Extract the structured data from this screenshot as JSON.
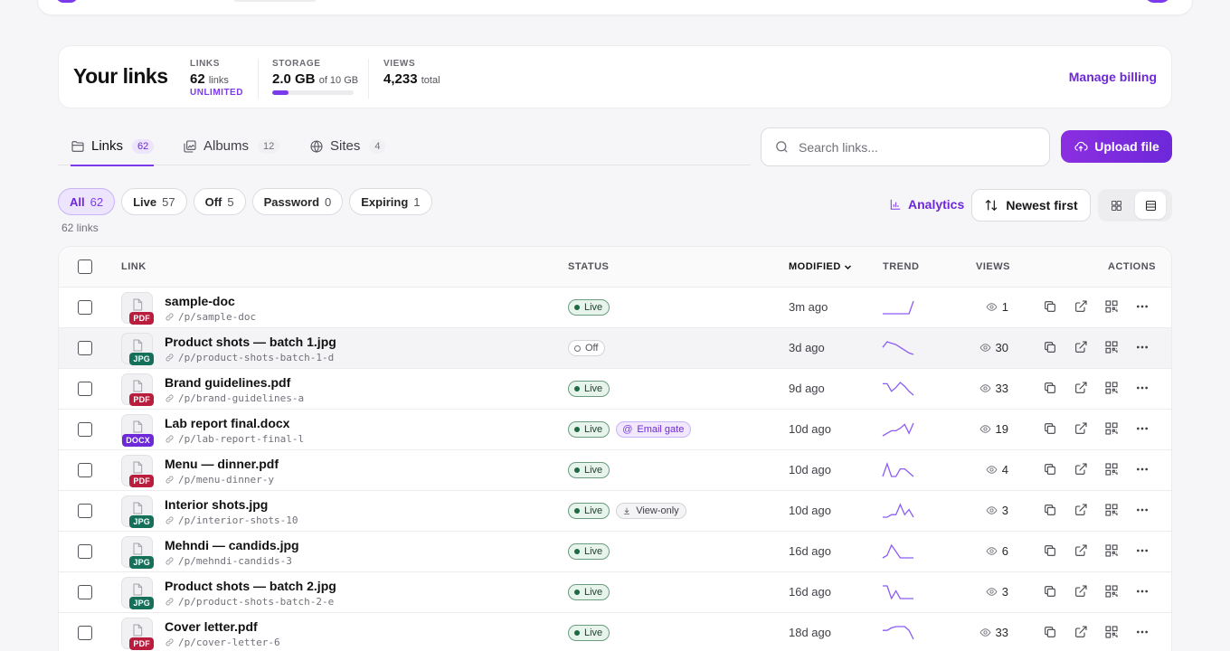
{
  "summary": {
    "title": "Your links",
    "links_label": "LINKS",
    "links_value": "62",
    "links_unit": "links",
    "links_sub": "UNLIMITED",
    "storage_label": "STORAGE",
    "storage_value": "2.0 GB",
    "storage_unit": "of 10 GB",
    "storage_fraction": 0.2,
    "views_label": "VIEWS",
    "views_value": "4,233",
    "views_unit": "total",
    "manage_billing": "Manage billing"
  },
  "tabs": [
    {
      "label": "Links",
      "count": "62",
      "icon": "folder-icon"
    },
    {
      "label": "Albums",
      "count": "12",
      "icon": "album-icon"
    },
    {
      "label": "Sites",
      "count": "4",
      "icon": "globe-icon"
    }
  ],
  "search": {
    "placeholder": "Search links..."
  },
  "upload_label": "Upload file",
  "filters": [
    {
      "label": "All",
      "count": "62"
    },
    {
      "label": "Live",
      "count": "57"
    },
    {
      "label": "Off",
      "count": "5"
    },
    {
      "label": "Password",
      "count": "0"
    },
    {
      "label": "Expiring",
      "count": "1"
    }
  ],
  "count_text": "62 links",
  "analytics_label": "Analytics",
  "sort_label": "Newest first",
  "table": {
    "headers": {
      "link": "LINK",
      "status": "STATUS",
      "modified": "MODIFIED",
      "trend": "TREND",
      "views": "VIEWS",
      "actions": "ACTIONS"
    },
    "rows": [
      {
        "name": "sample-doc",
        "slug": "/p/sample-doc",
        "type": "PDF",
        "type_color": "#b91c3c",
        "status": "Live",
        "extra": "",
        "modified": "3m ago",
        "views": "1",
        "trend": [
          0,
          0,
          0,
          0,
          0,
          0,
          0,
          10
        ]
      },
      {
        "name": "Product shots — batch 1.jpg",
        "slug": "/p/product-shots-batch-1-d",
        "type": "JPG",
        "type_color": "#15705a",
        "status": "Off",
        "extra": "",
        "modified": "3d ago",
        "views": "30",
        "trend": [
          5,
          9,
          8,
          7,
          5,
          3,
          1,
          0
        ]
      },
      {
        "name": "Brand guidelines.pdf",
        "slug": "/p/brand-guidelines-a",
        "type": "PDF",
        "type_color": "#b91c3c",
        "status": "Live",
        "extra": "",
        "modified": "9d ago",
        "views": "33",
        "trend": [
          9,
          9,
          3,
          6,
          10,
          7,
          3,
          0
        ]
      },
      {
        "name": "Lab report final.docx",
        "slug": "/p/lab-report-final-l",
        "type": "DOCX",
        "type_color": "#6d28d9",
        "status": "Live",
        "extra": "Email gate",
        "modified": "10d ago",
        "views": "19",
        "trend": [
          0,
          2,
          4,
          4,
          6,
          9,
          2,
          10
        ]
      },
      {
        "name": "Menu — dinner.pdf",
        "slug": "/p/menu-dinner-y",
        "type": "PDF",
        "type_color": "#b91c3c",
        "status": "Live",
        "extra": "",
        "modified": "10d ago",
        "views": "4",
        "trend": [
          0,
          10,
          0,
          0,
          6,
          6,
          3,
          0
        ]
      },
      {
        "name": "Interior shots.jpg",
        "slug": "/p/interior-shots-10",
        "type": "JPG",
        "type_color": "#15705a",
        "status": "Live",
        "extra": "View-only",
        "modified": "10d ago",
        "views": "3",
        "trend": [
          0,
          0,
          2,
          2,
          10,
          2,
          6,
          0
        ]
      },
      {
        "name": "Mehndi — candids.jpg",
        "slug": "/p/mehndi-candids-3",
        "type": "JPG",
        "type_color": "#15705a",
        "status": "Live",
        "extra": "",
        "modified": "16d ago",
        "views": "6",
        "trend": [
          0,
          2,
          10,
          5,
          0,
          0,
          0,
          0
        ]
      },
      {
        "name": "Product shots — batch 2.jpg",
        "slug": "/p/product-shots-batch-2-e",
        "type": "JPG",
        "type_color": "#15705a",
        "status": "Live",
        "extra": "",
        "modified": "16d ago",
        "views": "3",
        "trend": [
          10,
          10,
          0,
          6,
          0,
          0,
          0,
          0
        ]
      },
      {
        "name": "Cover letter.pdf",
        "slug": "/p/cover-letter-6",
        "type": "PDF",
        "type_color": "#b91c3c",
        "status": "Live",
        "extra": "",
        "modified": "18d ago",
        "views": "33",
        "trend": [
          7,
          7,
          9,
          10,
          10,
          10,
          7,
          0
        ]
      }
    ]
  }
}
